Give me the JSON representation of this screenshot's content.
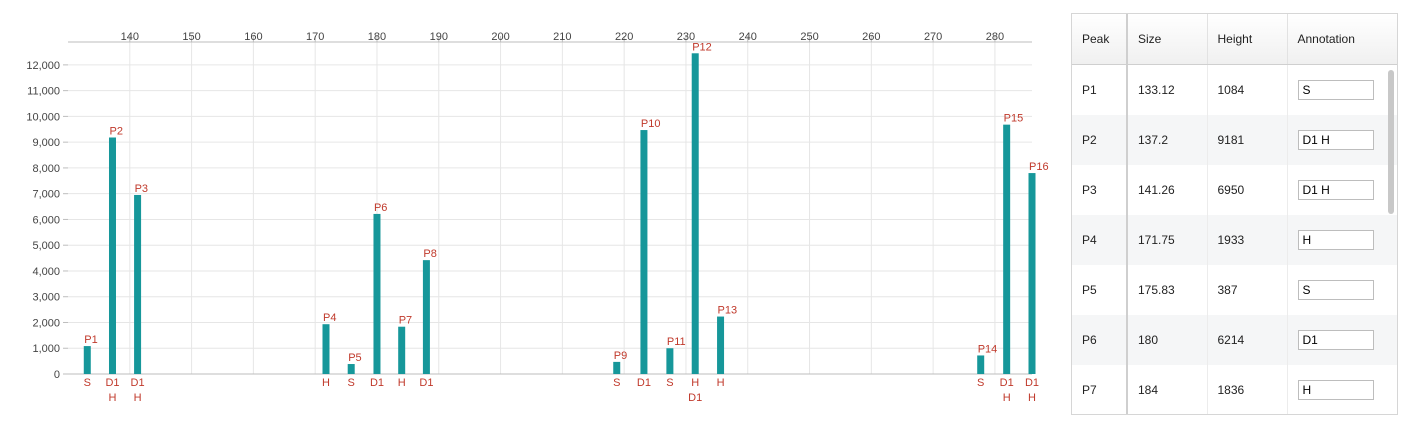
{
  "chart_data": {
    "type": "bar",
    "title": "",
    "xlabel": "",
    "ylabel": "",
    "xlim": [
      130,
      286
    ],
    "ylim": [
      0,
      12500
    ],
    "x_ticks": [
      140,
      150,
      160,
      170,
      180,
      190,
      200,
      210,
      220,
      230,
      240,
      250,
      260,
      270,
      280
    ],
    "y_ticks": [
      0,
      1000,
      2000,
      3000,
      4000,
      5000,
      6000,
      7000,
      8000,
      9000,
      10000,
      11000,
      12000
    ],
    "y_tick_labels": [
      "0",
      "1,000",
      "2,000",
      "3,000",
      "4,000",
      "5,000",
      "6,000",
      "7,000",
      "8,000",
      "9,000",
      "10,000",
      "11,000",
      "12,000"
    ],
    "grid": true,
    "bar_color": "#16979a",
    "label_color": "#c0392b",
    "peaks": [
      {
        "name": "P1",
        "x": 133.12,
        "y": 1084,
        "annot": [
          "S"
        ]
      },
      {
        "name": "P2",
        "x": 137.2,
        "y": 9181,
        "annot": [
          "D1",
          "H"
        ]
      },
      {
        "name": "P3",
        "x": 141.26,
        "y": 6950,
        "annot": [
          "D1",
          "H"
        ]
      },
      {
        "name": "P4",
        "x": 171.75,
        "y": 1933,
        "annot": [
          "H"
        ]
      },
      {
        "name": "P5",
        "x": 175.83,
        "y": 387,
        "annot": [
          "S"
        ]
      },
      {
        "name": "P6",
        "x": 180,
        "y": 6214,
        "annot": [
          "D1"
        ]
      },
      {
        "name": "P7",
        "x": 184,
        "y": 1836,
        "annot": [
          "H"
        ]
      },
      {
        "name": "P8",
        "x": 188,
        "y": 4420,
        "annot": [
          "D1"
        ]
      },
      {
        "name": "P9",
        "x": 218.8,
        "y": 470,
        "annot": [
          "S"
        ]
      },
      {
        "name": "P10",
        "x": 223.2,
        "y": 9470,
        "annot": [
          "D1"
        ]
      },
      {
        "name": "P11",
        "x": 227.4,
        "y": 1000,
        "annot": [
          "S"
        ]
      },
      {
        "name": "P12",
        "x": 231.5,
        "y": 12450,
        "annot": [
          "H",
          "D1"
        ]
      },
      {
        "name": "P13",
        "x": 235.6,
        "y": 2230,
        "annot": [
          "H"
        ]
      },
      {
        "name": "P14",
        "x": 277.7,
        "y": 720,
        "annot": [
          "S"
        ]
      },
      {
        "name": "P15",
        "x": 281.9,
        "y": 9680,
        "annot": [
          "D1",
          "H"
        ]
      },
      {
        "name": "P16",
        "x": 286,
        "y": 7800,
        "annot": [
          "D1",
          "H"
        ]
      }
    ]
  },
  "table": {
    "headers": {
      "peak": "Peak",
      "size": "Size",
      "height": "Height",
      "annotation": "Annotation"
    },
    "rows": [
      {
        "peak": "P1",
        "size": "133.12",
        "height": "1084",
        "annotation": "S"
      },
      {
        "peak": "P2",
        "size": "137.2",
        "height": "9181",
        "annotation": "D1 H"
      },
      {
        "peak": "P3",
        "size": "141.26",
        "height": "6950",
        "annotation": "D1 H"
      },
      {
        "peak": "P4",
        "size": "171.75",
        "height": "1933",
        "annotation": "H"
      },
      {
        "peak": "P5",
        "size": "175.83",
        "height": "387",
        "annotation": "S"
      },
      {
        "peak": "P6",
        "size": "180",
        "height": "6214",
        "annotation": "D1"
      },
      {
        "peak": "P7",
        "size": "184",
        "height": "1836",
        "annotation": "H"
      }
    ]
  }
}
